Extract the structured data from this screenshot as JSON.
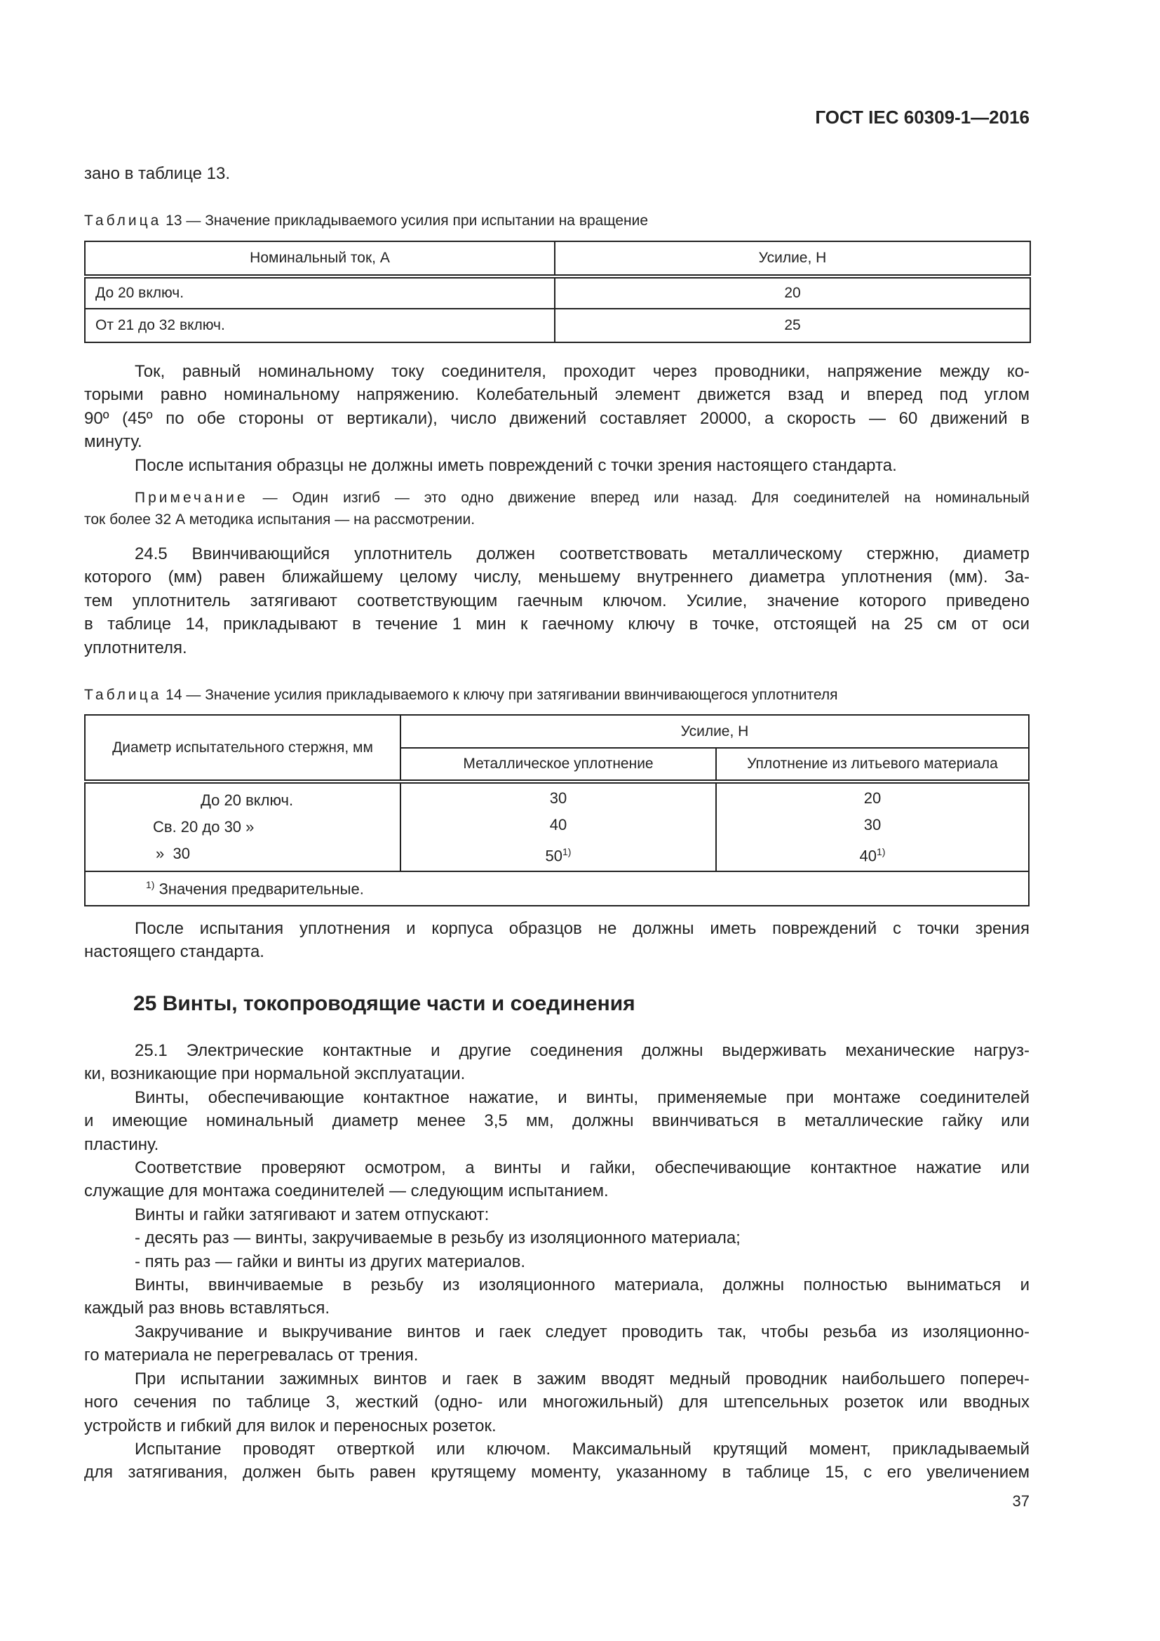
{
  "header": {
    "doc_id": "ГОСТ IEC 60309-1—2016"
  },
  "intro_line": "зано в таблице 13.",
  "table13": {
    "caption_label": "Таблица",
    "caption_text": " 13 — Значение прикладываемого усилия при испытании на вращение",
    "headers": [
      "Номинальный ток, А",
      "Усилие, Н"
    ],
    "rows": [
      [
        "До 20 включ.",
        "20"
      ],
      [
        "От 21 до 32 включ.",
        "25"
      ]
    ]
  },
  "para1": [
    "Ток, равный номинальному току соединителя, проходит через проводники, напряжение между ко-",
    "торыми равно номинальному напряжению. Колебательный элемент движется взад и вперед под углом",
    "90º (45º по обе стороны от вертикали), число движений составляет 20000, а скорость — 60 движений в",
    "минуту."
  ],
  "para2": "После испытания образцы не должны иметь повреждений с точки зрения настоящего стандарта.",
  "note": {
    "label": "Примечание",
    "line1": " — Один изгиб — это одно движение вперед или назад. Для соединителей на номинальный",
    "line2": "ток более 32 А методика испытания — на рассмотрении."
  },
  "para24_5": [
    "24.5 Ввинчивающийся уплотнитель должен соответствовать металлическому стержню, диаметр",
    "которого (мм) равен ближайшему целому числу, меньшему внутреннего диаметра уплотнения (мм). За-",
    "тем уплотнитель затягивают соответствующим гаечным ключом. Усилие, значение которого приведено",
    "в таблице 14, прикладывают в течение 1 мин к гаечному ключу в точке, отстоящей на 25 см от оси",
    "уплотнителя."
  ],
  "table14": {
    "caption_label": "Таблица",
    "caption_text": " 14 — Значение усилия прикладываемого к ключу при затягивании ввинчивающегося уплотнителя",
    "header_col1": "Диаметр испытательного стержня, мм",
    "header_group": "Усилие, Н",
    "header_sub": [
      "Металлическое уплотнение",
      "Уплотнение из литьевого материала"
    ],
    "col1": [
      "До 20 включ.",
      "Св. 20 до 30 »",
      "»  30"
    ],
    "col2": [
      "30",
      "40",
      "50"
    ],
    "col3": [
      "20",
      "30",
      "40"
    ],
    "footmark": "1)",
    "footnote": "Значения предварительные."
  },
  "para_after14": [
    "После испытания уплотнения и корпуса образцов не должны иметь повреждений с точки зрения",
    "настоящего стандарта."
  ],
  "section25": {
    "heading": "25 Винты, токопроводящие части и соединения",
    "paragraphs": [
      {
        "indent": true,
        "lines": [
          "25.1 Электрические контактные и другие соединения должны выдерживать механические нагруз-",
          "ки, возникающие при нормальной эксплуатации."
        ]
      },
      {
        "indent": true,
        "lines": [
          "Винты, обеспечивающие контактное нажатие, и винты, применяемые при монтаже соединителей",
          "и имеющие номинальный диаметр менее 3,5 мм, должны ввинчиваться в металлические гайку или",
          "пластину."
        ]
      },
      {
        "indent": true,
        "lines": [
          "Соответствие проверяют осмотром, а винты и гайки, обеспечивающие контактное нажатие или",
          "служащие для монтажа соединителей — следующим испытанием."
        ]
      },
      {
        "indent": true,
        "lines": [
          "Винты и гайки затягивают и затем отпускают:"
        ]
      },
      {
        "indent": true,
        "lines": [
          "- десять раз — винты, закручиваемые в резьбу из изоляционного материала;"
        ]
      },
      {
        "indent": true,
        "lines": [
          "- пять раз — гайки и винты из других материалов."
        ]
      },
      {
        "indent": true,
        "lines": [
          "Винты, ввинчиваемые в резьбу из изоляционного материала, должны полностью выниматься и",
          "каждый раз вновь вставляться."
        ]
      },
      {
        "indent": true,
        "lines": [
          "Закручивание и выкручивание винтов и гаек следует проводить так, чтобы резьба из изоляционно-",
          "го материала не перегревалась от трения."
        ]
      },
      {
        "indent": true,
        "lines": [
          "При испытании зажимных винтов и гаек в зажим вводят медный проводник наибольшего попереч-",
          "ного сечения по таблице 3, жесткий (одно- или многожильный) для штепсельных розеток или вводных",
          "устройств и гибкий для вилок и переносных розеток."
        ]
      },
      {
        "indent": true,
        "lines": [
          "Испытание проводят отверткой или ключом. Максимальный крутящий момент, прикладываемый",
          "для затягивания, должен быть равен крутящему моменту, указанному в таблице 15, с его увеличением"
        ]
      }
    ]
  },
  "page_number": "37"
}
